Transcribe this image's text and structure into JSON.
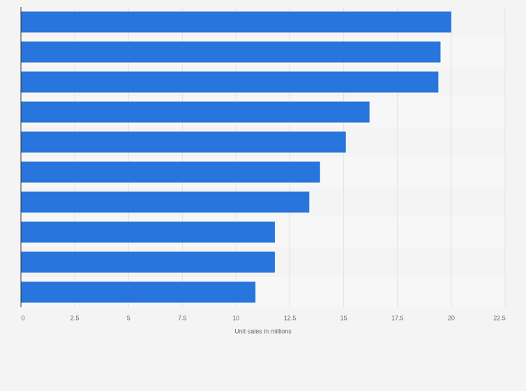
{
  "chart_data": {
    "type": "barh",
    "x_label": "Unit sales in millions",
    "categories": [
      null,
      null,
      null,
      null,
      null,
      null,
      null,
      null,
      null,
      null
    ],
    "values": [
      20.0,
      19.5,
      19.4,
      16.2,
      15.1,
      13.9,
      13.4,
      11.8,
      11.8,
      10.9
    ],
    "color": "#2876dd",
    "xlim": [
      0,
      22.5
    ],
    "xticks": [
      0,
      2.5,
      5,
      7.5,
      10,
      12.5,
      15,
      17.5,
      20,
      22.5
    ],
    "grid": true
  }
}
